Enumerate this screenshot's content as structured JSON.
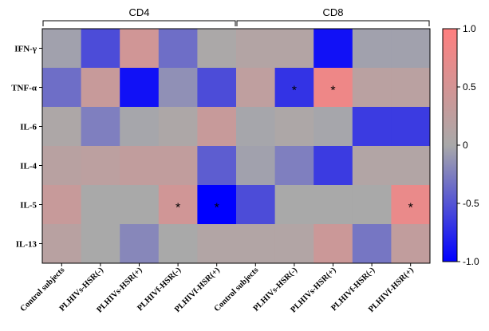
{
  "chart_data": {
    "type": "heatmap",
    "groups": [
      {
        "label": "CD4",
        "from": 0,
        "to": 4
      },
      {
        "label": "CD8",
        "from": 5,
        "to": 9
      }
    ],
    "columns": [
      "Control subjects",
      "PLHIVs-HSR(-)",
      "PLHIVs-HSR(+)",
      "PLHIVf-HSR(-)",
      "PLHIVf-HSR(+)",
      "Control subjects",
      "PLHIVs-HSR(-)",
      "PLHIVs-HSR(+)",
      "PLHIVf-HSR(-)",
      "PLHIVf-HSR(+)"
    ],
    "rows": [
      "IFN-γ",
      "TNF-α",
      "IL-6",
      "IL-4",
      "IL-5",
      "IL-13"
    ],
    "values": [
      [
        -0.05,
        -0.55,
        0.45,
        -0.35,
        0.02,
        0.12,
        0.12,
        -0.9,
        -0.05,
        -0.05
      ],
      [
        -0.35,
        0.35,
        -0.9,
        -0.15,
        -0.55,
        0.25,
        -0.7,
        0.8,
        0.2,
        0.2
      ],
      [
        0.05,
        -0.25,
        -0.02,
        0.05,
        0.35,
        -0.02,
        0.05,
        -0.02,
        -0.65,
        -0.65
      ],
      [
        0.18,
        0.22,
        0.28,
        0.28,
        -0.45,
        -0.05,
        -0.25,
        -0.65,
        0.1,
        0.1
      ],
      [
        0.35,
        0.0,
        0.0,
        0.45,
        -1.0,
        -0.55,
        0.0,
        0.0,
        0.0,
        0.75
      ],
      [
        0.18,
        0.0,
        -0.2,
        0.0,
        0.1,
        0.1,
        0.1,
        0.4,
        -0.3,
        0.28
      ]
    ],
    "significant": [
      [
        1,
        6
      ],
      [
        1,
        7
      ],
      [
        4,
        3
      ],
      [
        4,
        4
      ],
      [
        4,
        9
      ]
    ],
    "marker": "*",
    "color_scale": {
      "min": -1.0,
      "max": 1.0,
      "low_color": "#0000ff",
      "mid_color": "#a9a9a9",
      "high_color": "#ff7f7f",
      "ticks": [
        "1.0",
        "0.5",
        "0",
        "-0.5",
        "-1.0"
      ],
      "tick_values": [
        1.0,
        0.5,
        0,
        -0.5,
        -1.0
      ]
    }
  }
}
